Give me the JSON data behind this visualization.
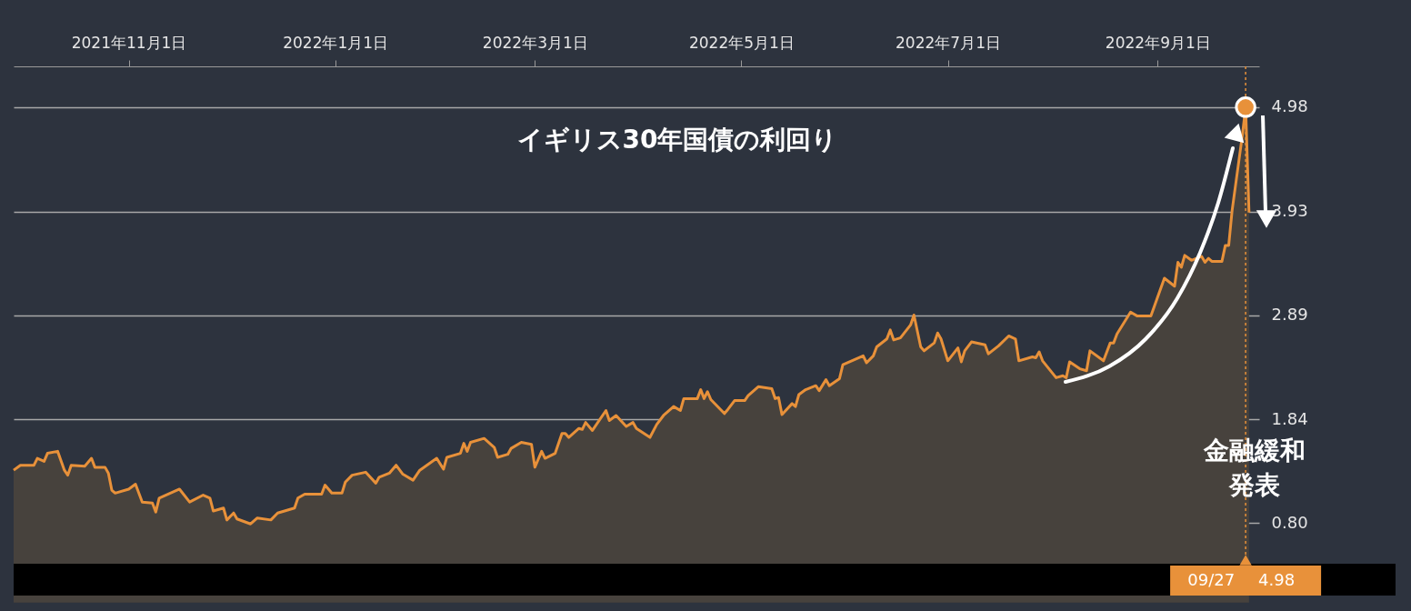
{
  "chart_data": {
    "type": "area",
    "title": "イギリス30年国債の利回り",
    "annotations": [
      "金融緩和発表",
      "4.98"
    ],
    "x": [
      "2021-09-28",
      "2021-09-30",
      "2021-10-04",
      "2021-10-05",
      "2021-10-07",
      "2021-10-08",
      "2021-10-11",
      "2021-10-13",
      "2021-10-14",
      "2021-10-15",
      "2021-10-19",
      "2021-10-21",
      "2021-10-22",
      "2021-10-25",
      "2021-10-26",
      "2021-10-27",
      "2021-10-28",
      "2021-11-01",
      "2021-11-03",
      "2021-11-05",
      "2021-11-08",
      "2021-11-09",
      "2021-11-10",
      "2021-11-16",
      "2021-11-19",
      "2021-11-23",
      "2021-11-25",
      "2021-11-26",
      "2021-11-29",
      "2021-11-30",
      "2021-12-02",
      "2021-12-03",
      "2021-12-07",
      "2021-12-09",
      "2021-12-13",
      "2021-12-15",
      "2021-12-20",
      "2021-12-21",
      "2021-12-23",
      "2021-12-28",
      "2021-12-29",
      "2021-12-31",
      "2022-01-03",
      "2022-01-04",
      "2022-01-06",
      "2022-01-10",
      "2022-01-13",
      "2022-01-14",
      "2022-01-17",
      "2022-01-19",
      "2022-01-21",
      "2022-01-24",
      "2022-01-26",
      "2022-01-31",
      "2022-02-02",
      "2022-02-03",
      "2022-02-07",
      "2022-02-08",
      "2022-02-09",
      "2022-02-10",
      "2022-02-14",
      "2022-02-17",
      "2022-02-18",
      "2022-02-21",
      "2022-02-22",
      "2022-02-25",
      "2022-02-28",
      "2022-03-01",
      "2022-03-03",
      "2022-03-04",
      "2022-03-07",
      "2022-03-09",
      "2022-03-10",
      "2022-03-11",
      "2022-03-14",
      "2022-03-15",
      "2022-03-16",
      "2022-03-18",
      "2022-03-22",
      "2022-03-23",
      "2022-03-25",
      "2022-03-28",
      "2022-03-30",
      "2022-03-31",
      "2022-04-04",
      "2022-04-06",
      "2022-04-08",
      "2022-04-11",
      "2022-04-13",
      "2022-04-14",
      "2022-04-18",
      "2022-04-19",
      "2022-04-20",
      "2022-04-21",
      "2022-04-22",
      "2022-04-26",
      "2022-04-27",
      "2022-04-29",
      "2022-05-02",
      "2022-05-03",
      "2022-05-06",
      "2022-05-10",
      "2022-05-11",
      "2022-05-12",
      "2022-05-13",
      "2022-05-16",
      "2022-05-17",
      "2022-05-18",
      "2022-05-20",
      "2022-05-23",
      "2022-05-24",
      "2022-05-26",
      "2022-05-27",
      "2022-05-30",
      "2022-05-31",
      "2022-06-06",
      "2022-06-07",
      "2022-06-09",
      "2022-06-10",
      "2022-06-13",
      "2022-06-14",
      "2022-06-15",
      "2022-06-17",
      "2022-06-20",
      "2022-06-21",
      "2022-06-23",
      "2022-06-24",
      "2022-06-27",
      "2022-06-28",
      "2022-06-29",
      "2022-07-01",
      "2022-07-04",
      "2022-07-05",
      "2022-07-06",
      "2022-07-08",
      "2022-07-12",
      "2022-07-13",
      "2022-07-16",
      "2022-07-19",
      "2022-07-21",
      "2022-07-22",
      "2022-07-26",
      "2022-07-27",
      "2022-07-28",
      "2022-07-29",
      "2022-08-02",
      "2022-08-04",
      "2022-08-05",
      "2022-08-06",
      "2022-08-09",
      "2022-08-11",
      "2022-08-12",
      "2022-08-16",
      "2022-08-18",
      "2022-08-19",
      "2022-08-20",
      "2022-08-24",
      "2022-08-26",
      "2022-08-30",
      "2022-09-03",
      "2022-09-06",
      "2022-09-07",
      "2022-09-08",
      "2022-09-09",
      "2022-09-11",
      "2022-09-14",
      "2022-09-15",
      "2022-09-16",
      "2022-09-17",
      "2022-09-20",
      "2022-09-21",
      "2022-09-22",
      "2022-09-23",
      "2022-09-26",
      "2022-09-27",
      "2022-09-28"
    ],
    "series": [
      {
        "color": "#e8913a",
        "values": [
          1.33,
          1.38,
          1.38,
          1.45,
          1.42,
          1.5,
          1.52,
          1.33,
          1.28,
          1.38,
          1.37,
          1.45,
          1.36,
          1.36,
          1.3,
          1.13,
          1.1,
          1.14,
          1.19,
          1.01,
          1.0,
          0.91,
          1.05,
          1.14,
          1.01,
          1.08,
          1.05,
          0.92,
          0.95,
          0.83,
          0.9,
          0.84,
          0.79,
          0.85,
          0.83,
          0.9,
          0.95,
          1.05,
          1.09,
          1.09,
          1.18,
          1.1,
          1.1,
          1.21,
          1.28,
          1.31,
          1.2,
          1.26,
          1.3,
          1.38,
          1.29,
          1.23,
          1.33,
          1.45,
          1.34,
          1.46,
          1.5,
          1.6,
          1.52,
          1.61,
          1.65,
          1.56,
          1.46,
          1.49,
          1.55,
          1.61,
          1.59,
          1.36,
          1.52,
          1.45,
          1.5,
          1.7,
          1.7,
          1.66,
          1.75,
          1.74,
          1.81,
          1.73,
          1.93,
          1.83,
          1.88,
          1.77,
          1.81,
          1.75,
          1.66,
          1.79,
          1.88,
          1.97,
          1.93,
          2.05,
          2.05,
          2.14,
          2.05,
          2.12,
          2.04,
          1.9,
          1.94,
          2.03,
          2.03,
          2.08,
          2.17,
          2.15,
          2.05,
          2.06,
          1.89,
          2.0,
          1.97,
          2.09,
          2.14,
          2.18,
          2.13,
          2.24,
          2.18,
          2.25,
          2.39,
          2.48,
          2.41,
          2.48,
          2.57,
          2.65,
          2.74,
          2.64,
          2.66,
          2.79,
          2.89,
          2.57,
          2.53,
          2.61,
          2.71,
          2.65,
          2.43,
          2.56,
          2.42,
          2.53,
          2.62,
          2.59,
          2.5,
          2.58,
          2.68,
          2.65,
          2.43,
          2.47,
          2.46,
          2.52,
          2.43,
          2.26,
          2.28,
          2.26,
          2.42,
          2.35,
          2.33,
          2.53,
          2.43,
          2.61,
          2.61,
          2.7,
          2.92,
          2.88,
          2.88,
          3.26,
          3.18,
          3.42,
          3.37,
          3.49,
          3.44,
          3.48,
          3.42,
          3.46,
          3.43,
          3.43,
          3.59,
          3.59,
          3.94,
          4.69,
          4.98,
          3.92
        ]
      }
    ],
    "xlim": [
      "2021-09-28",
      "2022-10-01"
    ],
    "xticks": [
      {
        "value": "2021-11-01",
        "label": "2021年11月1日"
      },
      {
        "value": "2022-01-01",
        "label": "2022年1月1日"
      },
      {
        "value": "2022-03-01",
        "label": "2022年3月1日"
      },
      {
        "value": "2022-05-01",
        "label": "2022年5月1日"
      },
      {
        "value": "2022-07-01",
        "label": "2022年7月1日"
      },
      {
        "value": "2022-09-01",
        "label": "2022年9月1日"
      }
    ],
    "ylim": [
      0.39,
      5.39
    ],
    "yticks": [
      {
        "value": 0.8,
        "label": "0.80"
      },
      1.84,
      2.89,
      3.93,
      4.98
    ],
    "grid": "y",
    "ref_lines": [
      {
        "axis": "x",
        "value": "2022-09-27",
        "label": "09/27",
        "color": "#e8913a",
        "line_style": "dotted"
      }
    ]
  }
}
